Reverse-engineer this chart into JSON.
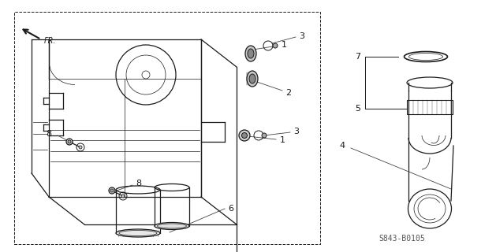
{
  "diagram_code": "S843-B0105",
  "bg": "#ffffff",
  "lc": "#1a1a1a",
  "lc_light": "#555555",
  "lw": 0.9,
  "lw_thin": 0.5,
  "lw_leader": 0.6
}
